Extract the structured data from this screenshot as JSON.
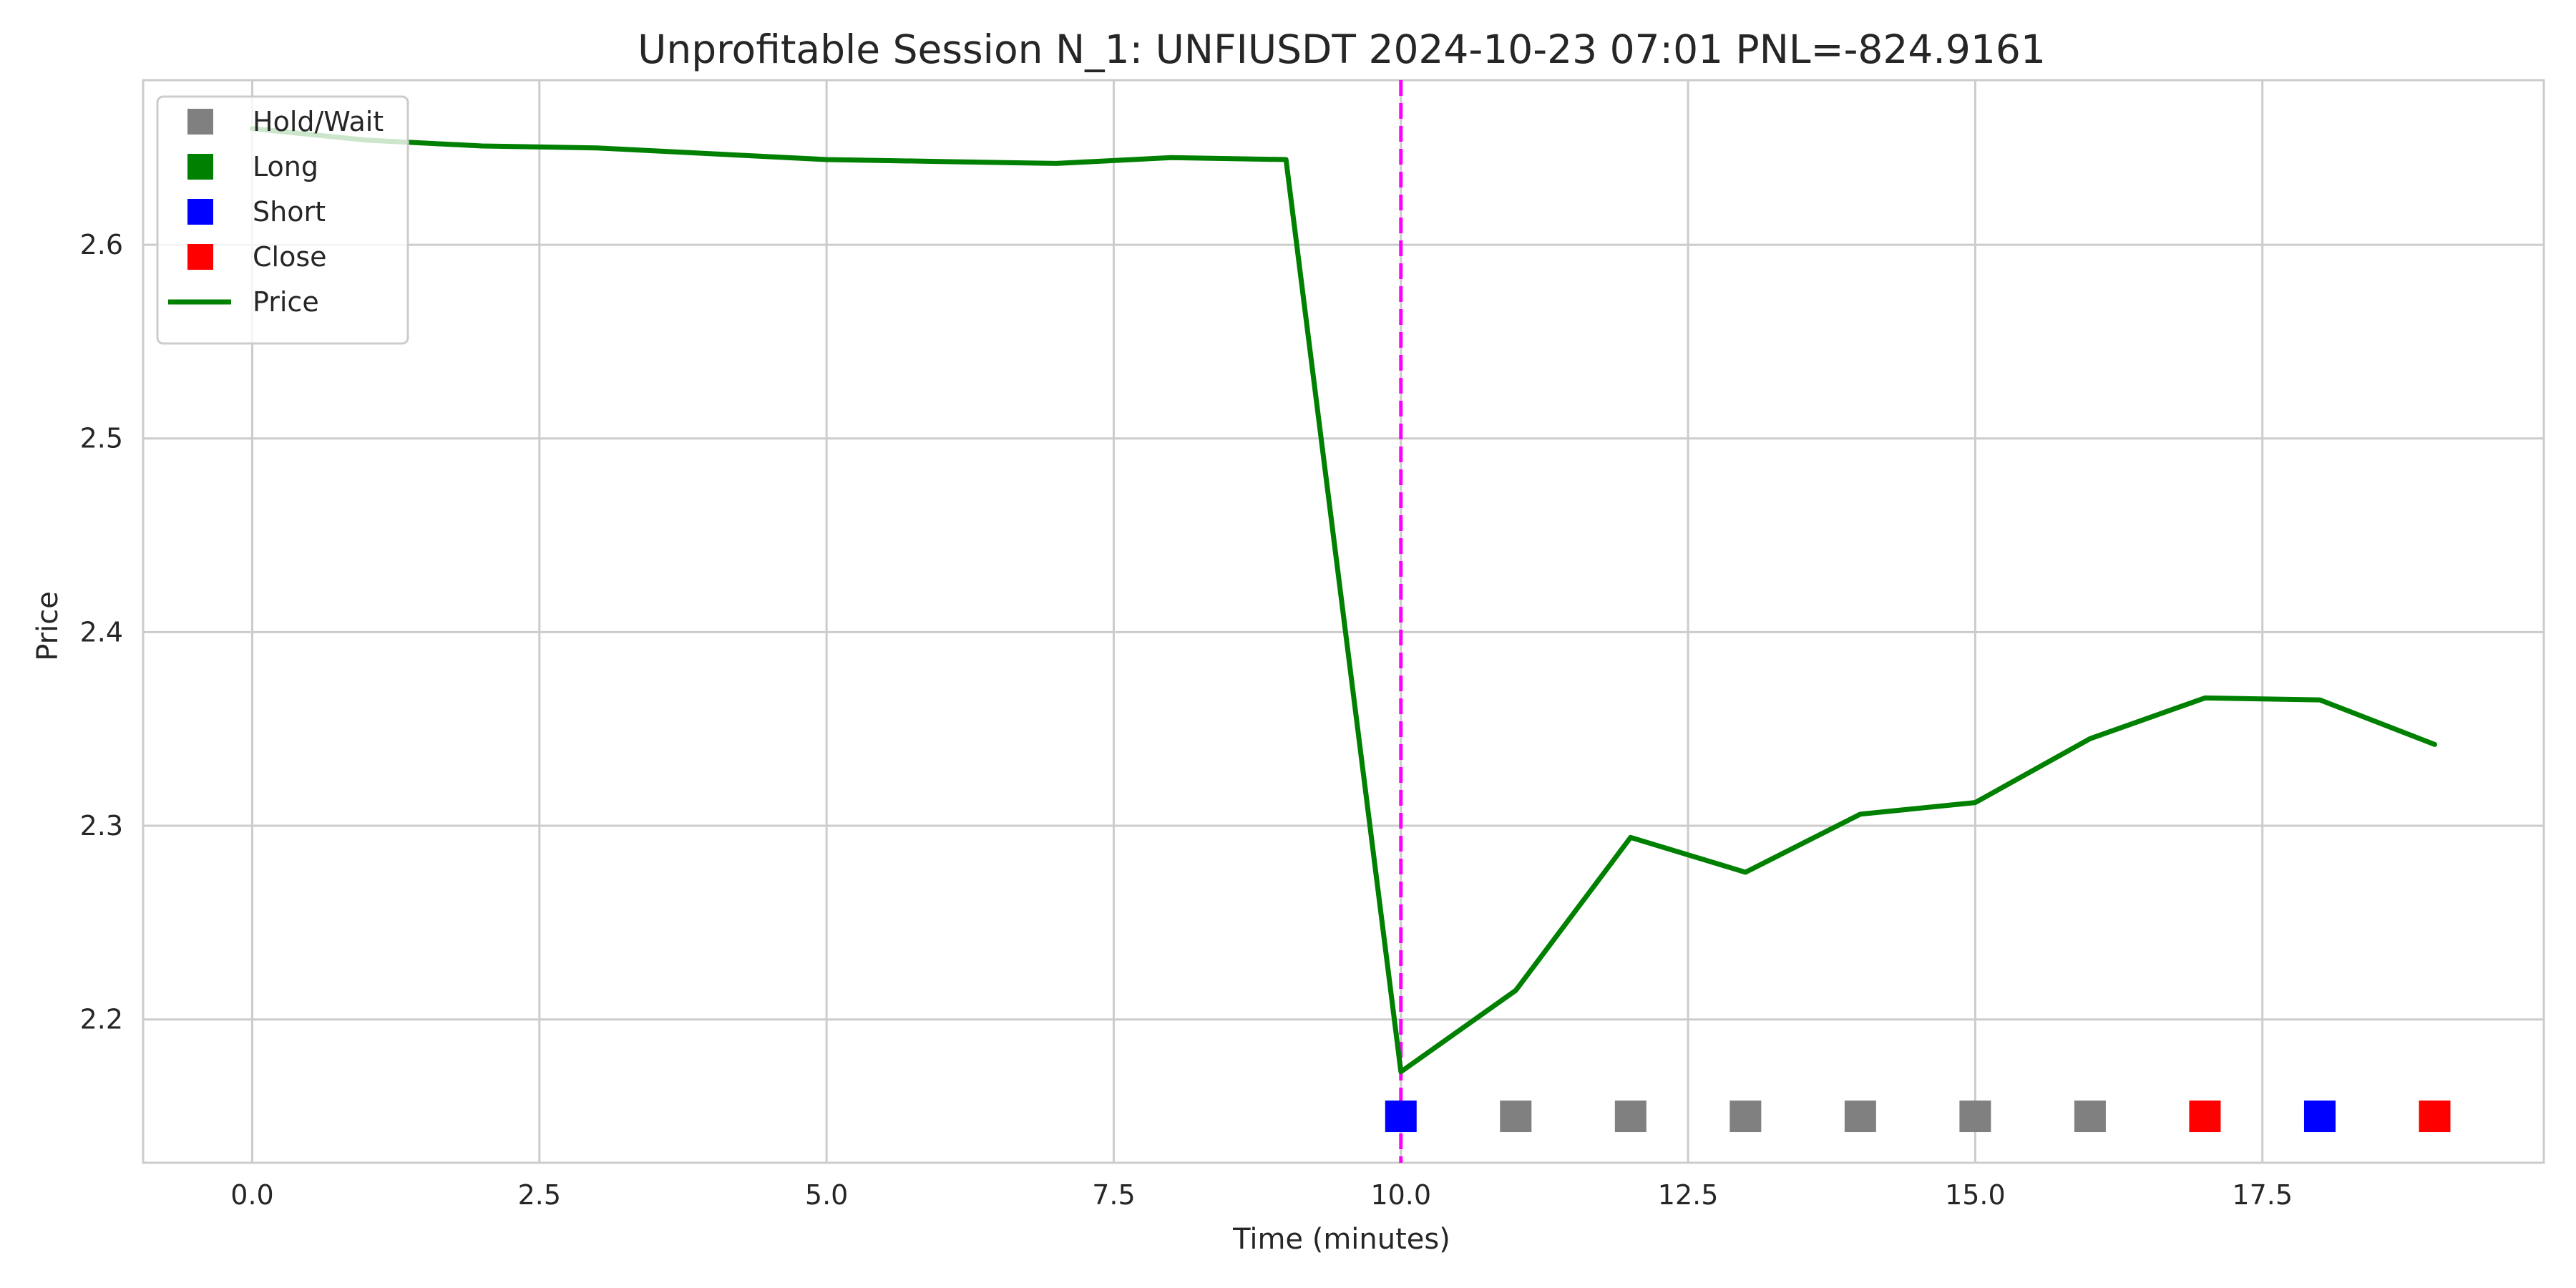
{
  "chart_data": {
    "type": "line",
    "title": "Unprofitable Session N_1: UNFIUSDT 2024-10-23 07:01  PNL=-824.9161",
    "xlabel": "Time (minutes)",
    "ylabel": "Price",
    "xlim": [
      -0.95,
      19.95
    ],
    "ylim": [
      2.126,
      2.685
    ],
    "xticks": [
      0.0,
      2.5,
      5.0,
      7.5,
      10.0,
      12.5,
      15.0,
      17.5
    ],
    "xtick_labels": [
      "0.0",
      "2.5",
      "5.0",
      "7.5",
      "10.0",
      "12.5",
      "15.0",
      "17.5"
    ],
    "yticks": [
      2.2,
      2.3,
      2.4,
      2.5,
      2.6
    ],
    "ytick_labels": [
      "2.2",
      "2.3",
      "2.4",
      "2.5",
      "2.6"
    ],
    "grid": true,
    "legend_position": "top-left",
    "legend": [
      {
        "label": "Hold/Wait",
        "marker": "square",
        "color": "#808080"
      },
      {
        "label": "Long",
        "marker": "square",
        "color": "#008000"
      },
      {
        "label": "Short",
        "marker": "square",
        "color": "#0000ff"
      },
      {
        "label": "Close",
        "marker": "square",
        "color": "#ff0000"
      },
      {
        "label": "Price",
        "marker": "line",
        "color": "#008000"
      }
    ],
    "series": [
      {
        "name": "Price",
        "color": "#008000",
        "x": [
          0,
          1,
          2,
          3,
          4,
          5,
          6,
          7,
          8,
          9,
          10,
          11,
          12,
          13,
          14,
          15,
          16,
          17,
          18,
          19
        ],
        "y": [
          2.66,
          2.654,
          2.651,
          2.65,
          2.647,
          2.644,
          2.643,
          2.642,
          2.645,
          2.644,
          2.173,
          2.215,
          2.294,
          2.276,
          2.306,
          2.312,
          2.345,
          2.366,
          2.365,
          2.342
        ]
      }
    ],
    "actions": {
      "y_level": 2.15,
      "points": [
        {
          "x": 10,
          "action": "Short",
          "color": "#0000ff"
        },
        {
          "x": 11,
          "action": "Hold/Wait",
          "color": "#808080"
        },
        {
          "x": 12,
          "action": "Hold/Wait",
          "color": "#808080"
        },
        {
          "x": 13,
          "action": "Hold/Wait",
          "color": "#808080"
        },
        {
          "x": 14,
          "action": "Hold/Wait",
          "color": "#808080"
        },
        {
          "x": 15,
          "action": "Hold/Wait",
          "color": "#808080"
        },
        {
          "x": 16,
          "action": "Hold/Wait",
          "color": "#808080"
        },
        {
          "x": 17,
          "action": "Close",
          "color": "#ff0000"
        },
        {
          "x": 18,
          "action": "Short",
          "color": "#0000ff"
        },
        {
          "x": 19,
          "action": "Close",
          "color": "#ff0000"
        }
      ]
    },
    "vertical_marker": {
      "x": 10,
      "color": "#ff00ff",
      "style": "dashed"
    }
  }
}
